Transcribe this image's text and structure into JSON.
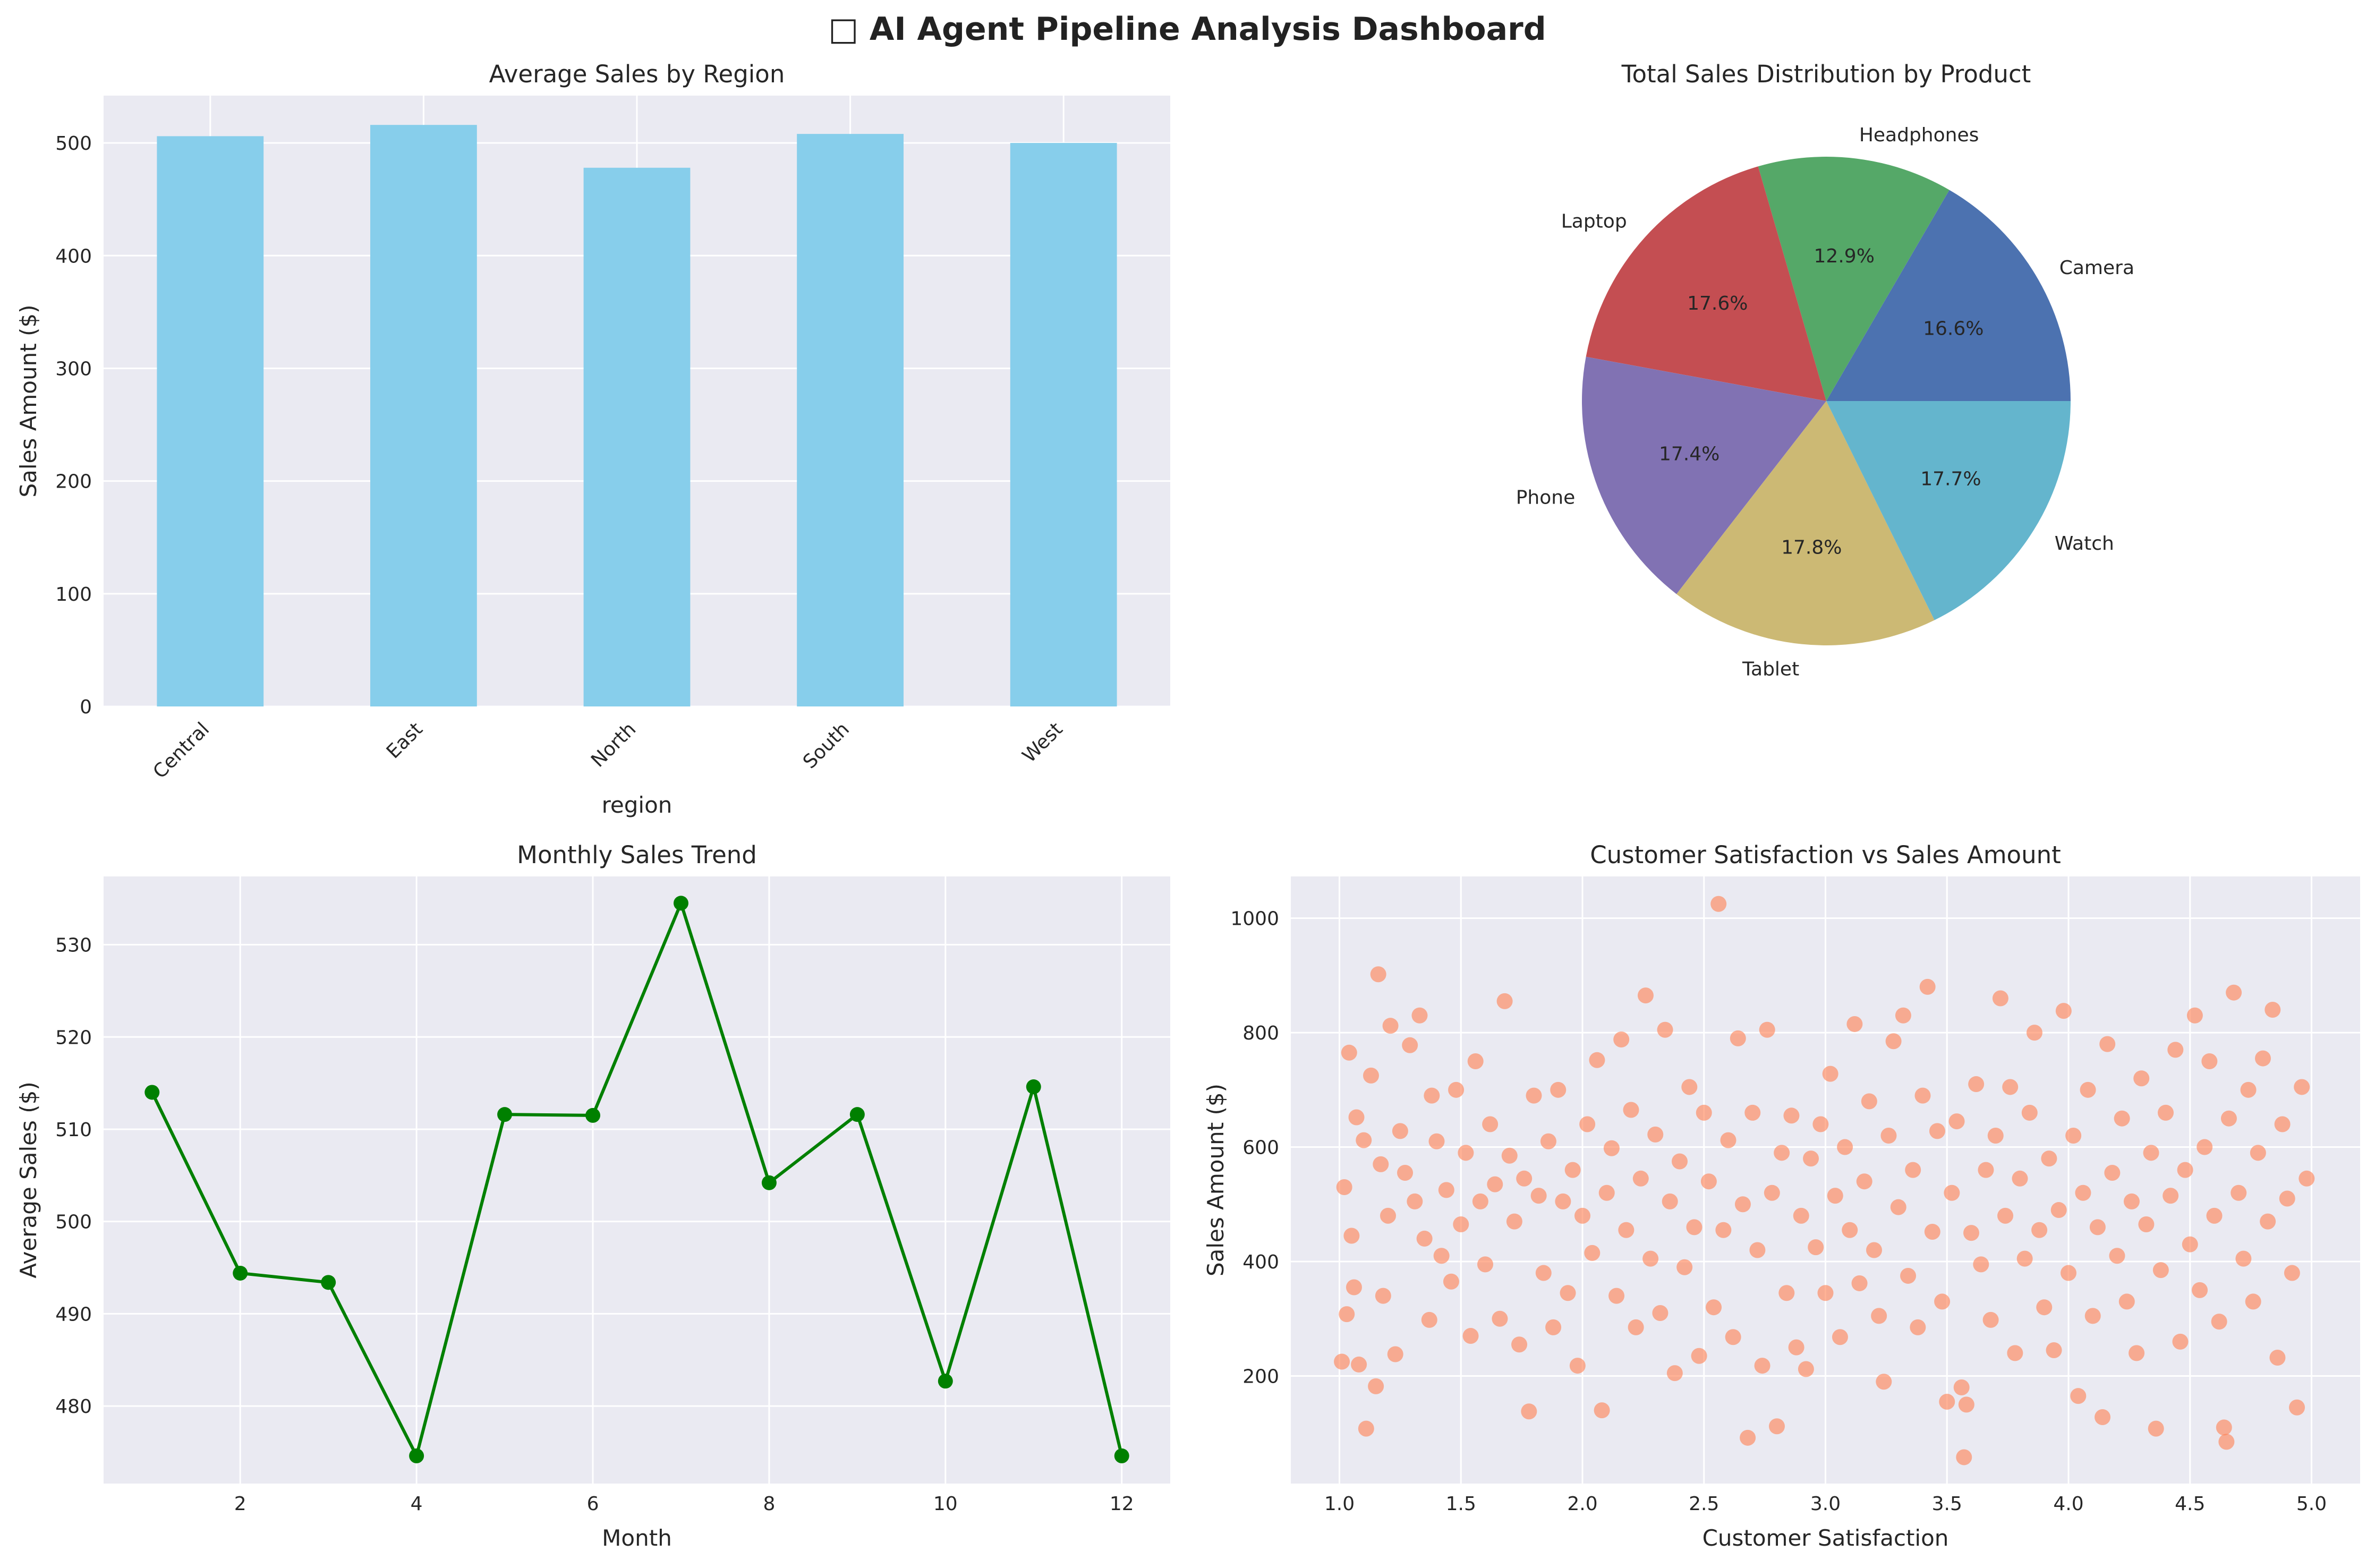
{
  "dashboard": {
    "title": "□ AI Agent Pipeline Analysis Dashboard"
  },
  "chart_data": [
    {
      "type": "bar",
      "title": "Average Sales by Region",
      "xlabel": "region",
      "ylabel": "Sales Amount ($)",
      "categories": [
        "Central",
        "East",
        "North",
        "South",
        "West"
      ],
      "values": [
        506,
        516,
        478,
        508,
        500
      ],
      "ylim": [
        0,
        542
      ],
      "yticks": [
        0,
        100,
        200,
        300,
        400,
        500
      ],
      "color": "#87ceeb",
      "grid": true
    },
    {
      "type": "pie",
      "title": "Total Sales Distribution by Product",
      "labels": [
        "Camera",
        "Headphones",
        "Laptop",
        "Phone",
        "Tablet",
        "Watch"
      ],
      "values": [
        16.6,
        12.9,
        17.6,
        17.4,
        17.8,
        17.7
      ],
      "value_labels": [
        "16.6%",
        "12.9%",
        "17.6%",
        "17.4%",
        "17.8%",
        "17.7%"
      ],
      "colors": [
        "#4c72b0",
        "#55a868",
        "#c44e52",
        "#8172b3",
        "#ccb974",
        "#64b5cd"
      ]
    },
    {
      "type": "line",
      "title": "Monthly Sales Trend",
      "xlabel": "Month",
      "ylabel": "Average Sales ($)",
      "x": [
        1,
        2,
        3,
        4,
        5,
        6,
        7,
        8,
        9,
        10,
        11,
        12
      ],
      "y": [
        514.0,
        494.4,
        493.4,
        474.6,
        511.6,
        511.5,
        534.5,
        504.2,
        511.6,
        482.7,
        514.6,
        474.6
      ],
      "xlim": [
        0.45,
        12.55
      ],
      "ylim": [
        471.6,
        537.4
      ],
      "xticks": [
        2,
        4,
        6,
        8,
        10,
        12
      ],
      "yticks": [
        480,
        490,
        500,
        510,
        520,
        530
      ],
      "color": "#008000",
      "marker": "circle",
      "grid": true
    },
    {
      "type": "scatter",
      "title": "Customer Satisfaction vs Sales Amount",
      "xlabel": "Customer Satisfaction",
      "ylabel": "Sales Amount ($)",
      "xlim": [
        0.8,
        5.2
      ],
      "ylim": [
        12,
        1073
      ],
      "xticks": [
        1.0,
        1.5,
        2.0,
        2.5,
        3.0,
        3.5,
        4.0,
        4.5,
        5.0
      ],
      "xtick_labels": [
        "1.0",
        "1.5",
        "2.0",
        "2.5",
        "3.0",
        "3.5",
        "4.0",
        "4.5",
        "5.0"
      ],
      "yticks": [
        200,
        400,
        600,
        800,
        1000
      ],
      "color": "#ff7f50",
      "grid": true,
      "points": [
        [
          1.01,
          225
        ],
        [
          1.02,
          530
        ],
        [
          1.03,
          308
        ],
        [
          1.04,
          765
        ],
        [
          1.05,
          445
        ],
        [
          1.06,
          355
        ],
        [
          1.07,
          652
        ],
        [
          1.08,
          220
        ],
        [
          1.1,
          612
        ],
        [
          1.11,
          108
        ],
        [
          1.13,
          725
        ],
        [
          1.15,
          182
        ],
        [
          1.16,
          902
        ],
        [
          1.17,
          570
        ],
        [
          1.18,
          340
        ],
        [
          1.2,
          480
        ],
        [
          1.21,
          812
        ],
        [
          1.23,
          238
        ],
        [
          1.25,
          628
        ],
        [
          1.27,
          555
        ],
        [
          1.29,
          778
        ],
        [
          1.31,
          505
        ],
        [
          1.33,
          830
        ],
        [
          1.35,
          440
        ],
        [
          1.37,
          298
        ],
        [
          1.38,
          690
        ],
        [
          1.4,
          610
        ],
        [
          1.42,
          410
        ],
        [
          1.44,
          525
        ],
        [
          1.46,
          365
        ],
        [
          1.48,
          700
        ],
        [
          1.5,
          465
        ],
        [
          1.52,
          590
        ],
        [
          1.54,
          270
        ],
        [
          1.56,
          750
        ],
        [
          1.58,
          505
        ],
        [
          1.6,
          395
        ],
        [
          1.62,
          640
        ],
        [
          1.64,
          535
        ],
        [
          1.66,
          300
        ],
        [
          1.68,
          855
        ],
        [
          1.7,
          585
        ],
        [
          1.72,
          470
        ],
        [
          1.74,
          255
        ],
        [
          1.76,
          545
        ],
        [
          1.78,
          138
        ],
        [
          1.8,
          690
        ],
        [
          1.82,
          515
        ],
        [
          1.84,
          380
        ],
        [
          1.86,
          610
        ],
        [
          1.88,
          285
        ],
        [
          1.9,
          700
        ],
        [
          1.92,
          505
        ],
        [
          1.94,
          345
        ],
        [
          1.96,
          560
        ],
        [
          1.98,
          218
        ],
        [
          2.0,
          480
        ],
        [
          2.02,
          640
        ],
        [
          2.04,
          415
        ],
        [
          2.06,
          752
        ],
        [
          2.08,
          140
        ],
        [
          2.1,
          520
        ],
        [
          2.12,
          598
        ],
        [
          2.14,
          340
        ],
        [
          2.16,
          788
        ],
        [
          2.18,
          455
        ],
        [
          2.2,
          665
        ],
        [
          2.22,
          285
        ],
        [
          2.24,
          545
        ],
        [
          2.26,
          865
        ],
        [
          2.28,
          405
        ],
        [
          2.3,
          622
        ],
        [
          2.32,
          310
        ],
        [
          2.34,
          805
        ],
        [
          2.36,
          505
        ],
        [
          2.38,
          205
        ],
        [
          2.4,
          575
        ],
        [
          2.42,
          390
        ],
        [
          2.44,
          705
        ],
        [
          2.46,
          460
        ],
        [
          2.48,
          235
        ],
        [
          2.5,
          660
        ],
        [
          2.52,
          540
        ],
        [
          2.54,
          320
        ],
        [
          2.56,
          1025
        ],
        [
          2.58,
          455
        ],
        [
          2.6,
          612
        ],
        [
          2.62,
          268
        ],
        [
          2.64,
          790
        ],
        [
          2.66,
          500
        ],
        [
          2.68,
          92
        ],
        [
          2.7,
          660
        ],
        [
          2.72,
          420
        ],
        [
          2.74,
          218
        ],
        [
          2.76,
          805
        ],
        [
          2.78,
          520
        ],
        [
          2.8,
          112
        ],
        [
          2.82,
          590
        ],
        [
          2.84,
          345
        ],
        [
          2.86,
          655
        ],
        [
          2.88,
          250
        ],
        [
          2.9,
          480
        ],
        [
          2.92,
          212
        ],
        [
          2.94,
          580
        ],
        [
          2.96,
          425
        ],
        [
          2.98,
          640
        ],
        [
          3.0,
          345
        ],
        [
          3.02,
          728
        ],
        [
          3.04,
          515
        ],
        [
          3.06,
          268
        ],
        [
          3.08,
          600
        ],
        [
          3.1,
          455
        ],
        [
          3.12,
          815
        ],
        [
          3.14,
          362
        ],
        [
          3.16,
          540
        ],
        [
          3.18,
          680
        ],
        [
          3.2,
          420
        ],
        [
          3.22,
          305
        ],
        [
          3.24,
          190
        ],
        [
          3.26,
          620
        ],
        [
          3.28,
          785
        ],
        [
          3.3,
          495
        ],
        [
          3.32,
          830
        ],
        [
          3.34,
          375
        ],
        [
          3.36,
          560
        ],
        [
          3.38,
          285
        ],
        [
          3.4,
          690
        ],
        [
          3.42,
          880
        ],
        [
          3.44,
          452
        ],
        [
          3.46,
          628
        ],
        [
          3.48,
          330
        ],
        [
          3.5,
          155
        ],
        [
          3.52,
          520
        ],
        [
          3.54,
          645
        ],
        [
          3.56,
          180
        ],
        [
          3.57,
          58
        ],
        [
          3.58,
          150
        ],
        [
          3.6,
          450
        ],
        [
          3.62,
          710
        ],
        [
          3.64,
          395
        ],
        [
          3.66,
          560
        ],
        [
          3.68,
          298
        ],
        [
          3.7,
          620
        ],
        [
          3.72,
          860
        ],
        [
          3.74,
          480
        ],
        [
          3.76,
          705
        ],
        [
          3.78,
          240
        ],
        [
          3.8,
          545
        ],
        [
          3.82,
          405
        ],
        [
          3.84,
          660
        ],
        [
          3.86,
          800
        ],
        [
          3.88,
          455
        ],
        [
          3.9,
          320
        ],
        [
          3.92,
          580
        ],
        [
          3.94,
          245
        ],
        [
          3.96,
          490
        ],
        [
          3.98,
          838
        ],
        [
          4.0,
          380
        ],
        [
          4.02,
          620
        ],
        [
          4.04,
          165
        ],
        [
          4.06,
          520
        ],
        [
          4.08,
          700
        ],
        [
          4.1,
          305
        ],
        [
          4.12,
          460
        ],
        [
          4.14,
          128
        ],
        [
          4.16,
          780
        ],
        [
          4.18,
          555
        ],
        [
          4.2,
          410
        ],
        [
          4.22,
          650
        ],
        [
          4.24,
          330
        ],
        [
          4.26,
          505
        ],
        [
          4.28,
          240
        ],
        [
          4.3,
          720
        ],
        [
          4.32,
          465
        ],
        [
          4.34,
          590
        ],
        [
          4.36,
          108
        ],
        [
          4.38,
          385
        ],
        [
          4.4,
          660
        ],
        [
          4.42,
          515
        ],
        [
          4.44,
          770
        ],
        [
          4.46,
          260
        ],
        [
          4.48,
          560
        ],
        [
          4.5,
          430
        ],
        [
          4.52,
          830
        ],
        [
          4.54,
          350
        ],
        [
          4.56,
          600
        ],
        [
          4.58,
          750
        ],
        [
          4.6,
          480
        ],
        [
          4.62,
          295
        ],
        [
          4.64,
          110
        ],
        [
          4.65,
          85
        ],
        [
          4.66,
          650
        ],
        [
          4.68,
          870
        ],
        [
          4.7,
          520
        ],
        [
          4.72,
          405
        ],
        [
          4.74,
          700
        ],
        [
          4.76,
          330
        ],
        [
          4.78,
          590
        ],
        [
          4.8,
          755
        ],
        [
          4.82,
          470
        ],
        [
          4.84,
          840
        ],
        [
          4.86,
          232
        ],
        [
          4.88,
          640
        ],
        [
          4.9,
          510
        ],
        [
          4.92,
          380
        ],
        [
          4.94,
          145
        ],
        [
          4.96,
          705
        ],
        [
          4.98,
          545
        ]
      ]
    }
  ]
}
